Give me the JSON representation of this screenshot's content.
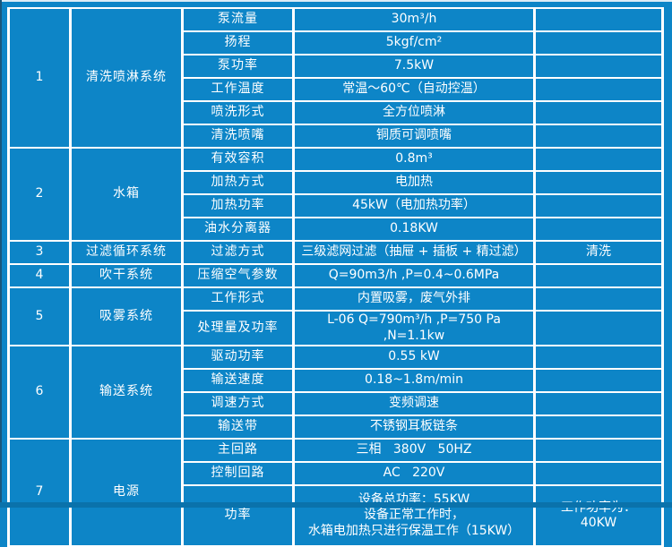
{
  "page": {
    "background_color": "#0d85c7",
    "grid_color": "#ffffff",
    "text_color": "#ffffff",
    "bottom_strip_color": "#0a72ab"
  },
  "table": {
    "sections": [
      {
        "no": "1",
        "name": "清洗喷淋系统",
        "rows": [
          {
            "param": "泵流量",
            "value": "30m³/h",
            "extra": ""
          },
          {
            "param": "扬程",
            "value": "5kgf/cm²",
            "extra": ""
          },
          {
            "param": "泵功率",
            "value": "7.5kW",
            "extra": ""
          },
          {
            "param": "工作温度",
            "value": "常温～60℃（自动控温）",
            "extra": ""
          },
          {
            "param": "喷洗形式",
            "value": "全方位喷淋",
            "extra": ""
          },
          {
            "param": "清洗喷嘴",
            "value": "铜质可调喷嘴",
            "extra": ""
          }
        ]
      },
      {
        "no": "2",
        "name": "水箱",
        "rows": [
          {
            "param": "有效容积",
            "value": "0.8m³",
            "extra": ""
          },
          {
            "param": "加热方式",
            "value": "电加热",
            "extra": ""
          },
          {
            "param": "加热功率",
            "value": "45kW（电加热功率）",
            "extra": ""
          },
          {
            "param": "油水分离器",
            "value": "0.18KW",
            "extra": ""
          }
        ]
      },
      {
        "no": "3",
        "name": "过滤循环系统",
        "rows": [
          {
            "param": "过滤方式",
            "value": "三级滤网过滤（抽屉 + 插板 + 精过滤）",
            "extra": "清洗"
          }
        ]
      },
      {
        "no": "4",
        "name": "吹干系统",
        "rows": [
          {
            "param": "压缩空气参数",
            "value": "Q=90m3/h ,P=0.4~0.6MPa",
            "extra": ""
          }
        ]
      },
      {
        "no": "5",
        "name": "吸雾系统",
        "rows": [
          {
            "param": "工作形式",
            "value": "内置吸雾，废气外排",
            "extra": ""
          },
          {
            "param": "处理量及功率",
            "value": "L-06 Q=790m³/h ,P=750 Pa ,N=1.1kw",
            "extra": ""
          }
        ]
      },
      {
        "no": "6",
        "name": "输送系统",
        "rows": [
          {
            "param": "驱动功率",
            "value": "0.55 kW",
            "extra": ""
          },
          {
            "param": "输送速度",
            "value": "0.18~1.8m/min",
            "extra": ""
          },
          {
            "param": "调速方式",
            "value": "变频调速",
            "extra": ""
          },
          {
            "param": "输送带",
            "value": "不锈钢耳板链条",
            "extra": ""
          }
        ]
      },
      {
        "no": "7",
        "name": "电源",
        "rows": [
          {
            "param": "主回路",
            "value": "三相   380V   50HZ",
            "extra": ""
          },
          {
            "param": "控制回路",
            "value": "AC   220V",
            "extra": ""
          },
          {
            "param": "功率",
            "value": [
              "设备总功率：55KW",
              "设备正常工作时，",
              "水箱电加热只进行保温工作（15KW）"
            ],
            "extra": "工作功率为：  40KW",
            "tall": true
          }
        ]
      }
    ]
  }
}
